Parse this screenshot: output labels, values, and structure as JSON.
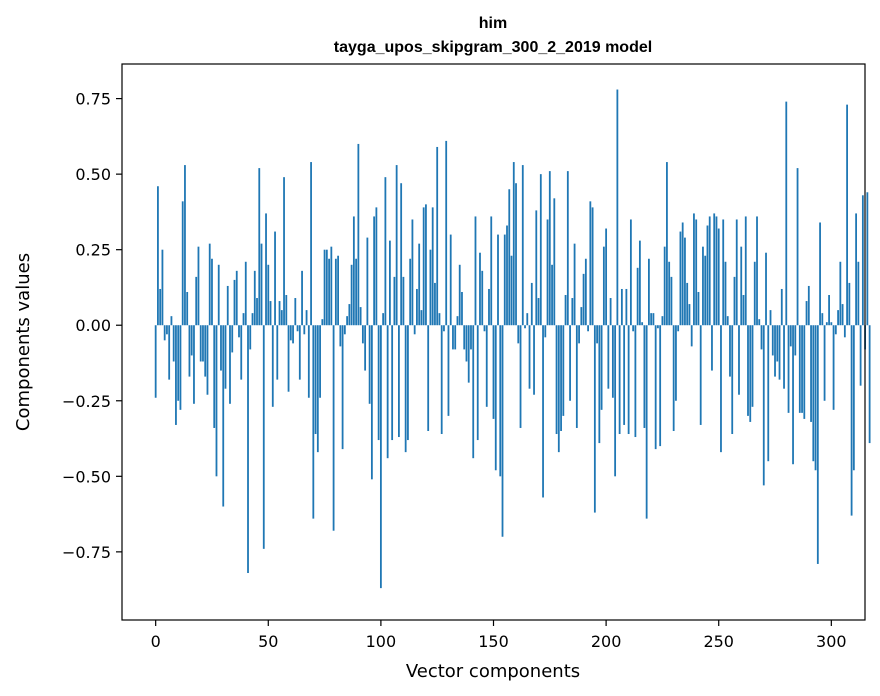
{
  "chart_data": {
    "type": "bar",
    "title": "him",
    "subtitle": "tayga_upos_skipgram_300_2_2019 model",
    "xlabel": "Vector components",
    "ylabel": "Components values",
    "xlim": [
      -14.95,
      314.95
    ],
    "ylim": [
      -0.9755,
      0.8645
    ],
    "xticks": [
      0,
      50,
      100,
      150,
      200,
      250,
      300
    ],
    "xtick_labels": [
      "0",
      "50",
      "100",
      "150",
      "200",
      "250",
      "300"
    ],
    "yticks": [
      -0.75,
      -0.5,
      -0.25,
      0.0,
      0.25,
      0.5,
      0.75
    ],
    "ytick_labels": [
      "−0.75",
      "−0.50",
      "−0.25",
      "0.00",
      "0.25",
      "0.50",
      "0.75"
    ],
    "bar_color": "#1f77b4",
    "grid": false,
    "series": [
      {
        "values": [
          -0.24,
          0.46,
          0.12,
          0.25,
          -0.05,
          -0.03,
          -0.18,
          0.03,
          -0.12,
          -0.33,
          -0.25,
          -0.28,
          0.41,
          0.53,
          0.11,
          -0.17,
          -0.1,
          -0.26,
          0.16,
          0.26,
          -0.12,
          -0.12,
          -0.17,
          -0.23,
          0.27,
          0.22,
          -0.34,
          -0.5,
          0.2,
          -0.15,
          -0.6,
          -0.21,
          0.13,
          -0.26,
          -0.09,
          0.15,
          0.18,
          -0.04,
          -0.18,
          0.04,
          0.21,
          -0.82,
          -0.08,
          0.04,
          0.18,
          0.09,
          0.52,
          0.27,
          -0.74,
          0.37,
          0.2,
          0.08,
          -0.27,
          0.31,
          -0.18,
          0.08,
          0.05,
          0.49,
          0.1,
          -0.22,
          -0.05,
          -0.06,
          0.09,
          -0.02,
          -0.18,
          0.18,
          -0.03,
          0.05,
          -0.24,
          0.54,
          -0.64,
          -0.36,
          -0.42,
          -0.24,
          0.02,
          0.25,
          0.25,
          0.22,
          0.26,
          -0.68,
          0.22,
          0.23,
          -0.07,
          -0.41,
          -0.03,
          0.03,
          0.07,
          0.2,
          0.36,
          0.22,
          0.6,
          0.06,
          -0.06,
          -0.15,
          0.29,
          -0.26,
          -0.51,
          0.36,
          0.39,
          -0.38,
          -0.87,
          0.04,
          0.49,
          -0.44,
          0.28,
          -0.38,
          0.16,
          0.53,
          -0.37,
          0.47,
          0.16,
          -0.42,
          -0.38,
          0.22,
          0.35,
          -0.03,
          0.12,
          0.27,
          0.05,
          0.39,
          0.4,
          -0.35,
          0.25,
          0.39,
          0.14,
          0.59,
          0.04,
          -0.36,
          -0.02,
          0.61,
          -0.3,
          0.3,
          -0.08,
          -0.08,
          0.03,
          0.2,
          0.11,
          -0.08,
          -0.12,
          -0.19,
          -0.08,
          -0.44,
          0.36,
          -0.38,
          0.24,
          0.18,
          -0.02,
          -0.27,
          0.12,
          0.36,
          -0.31,
          -0.48,
          0.3,
          -0.5,
          -0.7,
          0.3,
          0.33,
          0.45,
          0.23,
          0.54,
          0.47,
          -0.06,
          -0.34,
          0.53,
          -0.01,
          0.04,
          -0.21,
          0.14,
          -0.23,
          0.38,
          0.09,
          0.5,
          -0.57,
          -0.04,
          0.35,
          0.51,
          0.2,
          0.42,
          -0.36,
          -0.42,
          -0.35,
          -0.3,
          0.1,
          0.51,
          -0.25,
          0.09,
          0.27,
          -0.34,
          -0.06,
          0.06,
          0.17,
          0.22,
          -0.02,
          0.41,
          0.39,
          -0.62,
          -0.06,
          -0.39,
          -0.28,
          0.26,
          0.32,
          -0.21,
          0.09,
          -0.24,
          -0.5,
          0.78,
          -0.36,
          0.12,
          -0.33,
          0.12,
          -0.36,
          0.35,
          -0.02,
          -0.37,
          0.19,
          0.28,
          0.01,
          -0.34,
          -0.64,
          0.22,
          0.04,
          0.04,
          -0.41,
          -0.01,
          -0.4,
          0.03,
          0.26,
          0.54,
          0.21,
          0.16,
          -0.35,
          -0.25,
          -0.02,
          0.31,
          0.34,
          0.29,
          0.14,
          0.07,
          -0.07,
          0.37,
          0.35,
          0.11,
          -0.33,
          0.26,
          0.23,
          0.33,
          0.36,
          -0.15,
          0.37,
          0.36,
          0.32,
          -0.42,
          0.35,
          0.21,
          0.03,
          -0.17,
          -0.36,
          0.16,
          0.35,
          -0.23,
          0.26,
          0.1,
          0.36,
          -0.3,
          -0.32,
          -0.27,
          0.21,
          0.36,
          0.02,
          -0.08,
          -0.53,
          0.24,
          -0.45,
          0.05,
          -0.1,
          -0.17,
          -0.12,
          -0.18,
          0.12,
          -0.21,
          0.74,
          -0.29,
          -0.07,
          -0.46,
          -0.1,
          0.52,
          -0.29,
          -0.29,
          -0.31,
          0.08,
          0.13,
          -0.32,
          -0.45,
          -0.48,
          -0.79,
          0.34,
          0.04,
          -0.25,
          0.01,
          0.1,
          0.01,
          -0.28,
          -0.03,
          0.05,
          0.21,
          0.07,
          -0.04,
          0.73,
          0.14,
          -0.63,
          -0.48,
          0.37,
          0.21,
          -0.2,
          0.43,
          -0.08,
          0.44,
          -0.39
        ]
      }
    ]
  }
}
